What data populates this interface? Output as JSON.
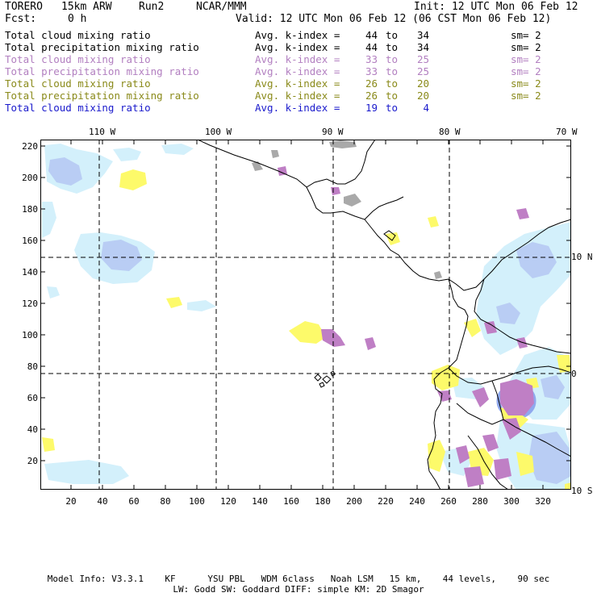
{
  "header": {
    "model": "TORERO",
    "resolution": "15km ARW",
    "run": "Run2",
    "source": "NCAR/MMM",
    "init": "Init: 12 UTC Mon 06 Feb 12",
    "fcst_label": "Fcst:",
    "fcst_value": "0 h",
    "valid": "Valid: 12 UTC Mon 06 Feb 12 (06 CST Mon 06 Feb 12)"
  },
  "legend": [
    {
      "name": "Total cloud mixing ratio",
      "avg": "Avg. k-index =",
      "from": "44",
      "to_label": "to",
      "to": "34",
      "smooth": "sm= 2",
      "color": "#000000"
    },
    {
      "name": "Total precipitation mixing ratio",
      "avg": "Avg. k-index =",
      "from": "44",
      "to_label": "to",
      "to": "34",
      "smooth": "sm= 2",
      "color": "#000000"
    },
    {
      "name": "Total cloud mixing ratio",
      "avg": "Avg. k-index =",
      "from": "33",
      "to_label": "to",
      "to": "25",
      "smooth": "sm= 2",
      "color": "#b27fc0"
    },
    {
      "name": "Total precipitation mixing ratio",
      "avg": "Avg. k-index =",
      "from": "33",
      "to_label": "to",
      "to": "25",
      "smooth": "sm= 2",
      "color": "#b27fc0"
    },
    {
      "name": "Total cloud mixing ratio",
      "avg": "Avg. k-index =",
      "from": "26",
      "to_label": "to",
      "to": "20",
      "smooth": "sm= 2",
      "color": "#8a8a1a"
    },
    {
      "name": "Total precipitation mixing ratio",
      "avg": "Avg. k-index =",
      "from": "26",
      "to_label": "to",
      "to": "20",
      "smooth": "sm= 2",
      "color": "#8a8a1a"
    },
    {
      "name": "Total cloud mixing ratio",
      "avg": "Avg. k-index =",
      "from": "19",
      "to_label": "to",
      "to": "4",
      "smooth": "",
      "color": "#1a1acc"
    }
  ],
  "map": {
    "lon_labels": [
      "110 W",
      "100 W",
      "90 W",
      "80 W",
      "70 W"
    ],
    "lat_labels": [
      "10 N",
      "0",
      "10 S"
    ],
    "y_ticks": [
      "220",
      "200",
      "180",
      "160",
      "140",
      "120",
      "100",
      "80",
      "60",
      "40",
      "20"
    ],
    "x_ticks": [
      "20",
      "40",
      "60",
      "80",
      "100",
      "120",
      "140",
      "160",
      "180",
      "200",
      "220",
      "240",
      "260",
      "280",
      "300",
      "320"
    ],
    "colors": {
      "cloud_light": "#d3f0fb",
      "cloud_blue": "#b9cdf4",
      "cloud_deep": "#2d58e0",
      "precip_purple": "#bf7fc5",
      "precip_yellow": "#fdfa6a",
      "precip_gray": "#a9a9a9"
    }
  },
  "footer": {
    "line1": "Model Info: V3.3.1    KF      YSU PBL   WDM 6class   Noah LSM   15 km,    44 levels,    90 sec",
    "line2": "LW: Godd SW: Goddard DIFF: simple KM: 2D Smagor"
  }
}
